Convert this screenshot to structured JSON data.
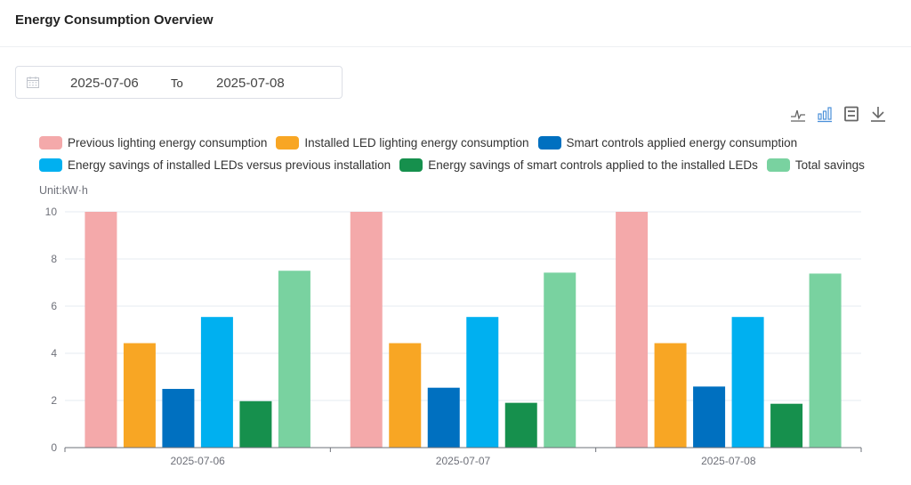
{
  "header": {
    "title": "Energy Consumption Overview"
  },
  "date_range": {
    "icon": "calendar-icon",
    "start": "2025-07-06",
    "separator": "To",
    "end": "2025-07-08"
  },
  "toolbox": [
    {
      "name": "line-chart-icon",
      "active": false
    },
    {
      "name": "bar-chart-icon",
      "active": true
    },
    {
      "name": "save-icon",
      "active": false
    },
    {
      "name": "download-icon",
      "active": false
    }
  ],
  "colors": {
    "accent": "#5b9bd5",
    "grid": "#e6ebf2",
    "axis": "#6e7079"
  },
  "chart_data": {
    "type": "bar",
    "title": "Energy Consumption Overview",
    "xlabel": "",
    "ylabel": "Unit:kW·h",
    "ylim": [
      0,
      10
    ],
    "yticks": [
      0,
      2,
      4,
      6,
      8,
      10
    ],
    "grid": true,
    "legend_position": "top",
    "categories": [
      "2025-07-06",
      "2025-07-07",
      "2025-07-08"
    ],
    "series": [
      {
        "name": "Previous lighting energy consumption",
        "color": "#f4a9aa",
        "values": [
          10,
          10,
          10
        ]
      },
      {
        "name": "Installed LED lighting energy consumption",
        "color": "#f8a624",
        "values": [
          4.43,
          4.43,
          4.43
        ]
      },
      {
        "name": "Smart controls applied energy consumption",
        "color": "#0070c0",
        "values": [
          2.49,
          2.54,
          2.59
        ]
      },
      {
        "name": "Energy savings of installed LEDs versus previous installation",
        "color": "#00b0f0",
        "values": [
          5.54,
          5.54,
          5.54
        ]
      },
      {
        "name": "Energy savings of smart controls applied to the installed LEDs",
        "color": "#16904d",
        "values": [
          1.97,
          1.9,
          1.86
        ]
      },
      {
        "name": "Total savings",
        "color": "#79d2a0",
        "values": [
          7.5,
          7.42,
          7.38
        ]
      }
    ]
  }
}
